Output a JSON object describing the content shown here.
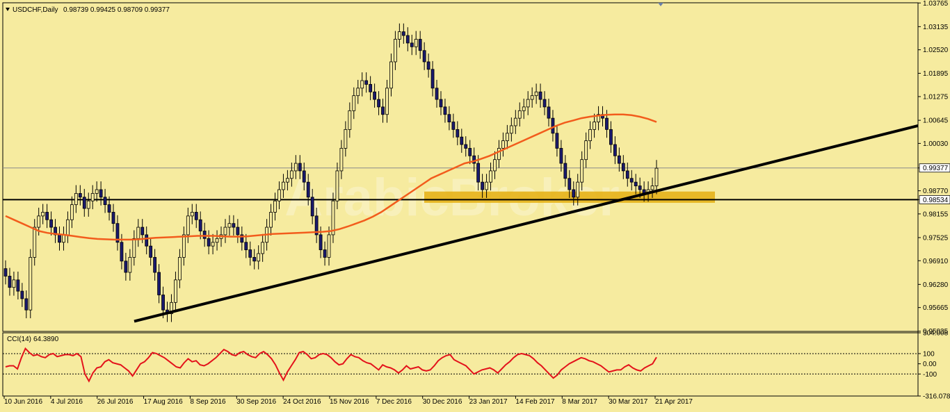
{
  "header": {
    "symbol": "USDCHF,Daily",
    "ohlc": "0.98739 0.99425 0.98709 0.99377"
  },
  "watermark": "ArabicBroker",
  "chart_data": [
    {
      "type": "candlestick",
      "symbol": "USDCHF",
      "timeframe": "Daily",
      "last_ohlc": {
        "open": 0.98739,
        "high": 0.99425,
        "low": 0.98709,
        "close": 0.99377
      },
      "ylim": [
        0.9503,
        1.0377
      ],
      "y_ticks": [
        "1.03765",
        "1.03135",
        "1.02520",
        "1.01895",
        "1.01275",
        "1.00645",
        "1.00030",
        "0.99377",
        "0.98770",
        "0.98534",
        "0.98155",
        "0.97525",
        "0.96910",
        "0.96280",
        "0.95665",
        "0.95035"
      ],
      "current_price_label": "0.99377",
      "horizontal_line_label": "0.98534",
      "horizontal_line": 0.98534,
      "support_zone": [
        0.9845,
        0.9875
      ],
      "trendline": [
        {
          "x": "17 Aug 2016",
          "y": 0.953
        },
        {
          "x": "11 May 2017",
          "y": 1.005
        }
      ],
      "x_ticks": [
        "10 Jun 2016",
        "4 Jul 2016",
        "26 Jul 2016",
        "17 Aug 2016",
        "8 Sep 2016",
        "30 Sep 2016",
        "24 Oct 2016",
        "15 Nov 2016",
        "7 Dec 2016",
        "30 Dec 2016",
        "23 Jan 2017",
        "14 Feb 2017",
        "8 Mar 2017",
        "30 Mar 2017",
        "21 Apr 2017"
      ],
      "close_series": [
        0.965,
        0.962,
        0.964,
        0.961,
        0.959,
        0.956,
        0.97,
        0.978,
        0.981,
        0.982,
        0.98,
        0.978,
        0.976,
        0.974,
        0.976,
        0.98,
        0.984,
        0.987,
        0.986,
        0.983,
        0.985,
        0.987,
        0.988,
        0.986,
        0.984,
        0.982,
        0.979,
        0.974,
        0.969,
        0.966,
        0.97,
        0.975,
        0.978,
        0.976,
        0.973,
        0.97,
        0.966,
        0.96,
        0.956,
        0.955,
        0.958,
        0.964,
        0.97,
        0.976,
        0.981,
        0.982,
        0.98,
        0.977,
        0.975,
        0.973,
        0.974,
        0.975,
        0.976,
        0.978,
        0.979,
        0.978,
        0.976,
        0.974,
        0.972,
        0.97,
        0.969,
        0.971,
        0.974,
        0.978,
        0.982,
        0.985,
        0.988,
        0.99,
        0.991,
        0.993,
        0.995,
        0.993,
        0.99,
        0.986,
        0.981,
        0.976,
        0.972,
        0.97,
        0.976,
        0.985,
        0.993,
        0.999,
        1.004,
        1.009,
        1.013,
        1.015,
        1.017,
        1.016,
        1.014,
        1.012,
        1.01,
        1.008,
        1.015,
        1.022,
        1.028,
        1.03,
        1.029,
        1.027,
        1.026,
        1.028,
        1.025,
        1.022,
        1.02,
        1.015,
        1.012,
        1.01,
        1.008,
        1.006,
        1.004,
        1.002,
        1.0,
        0.999,
        0.997,
        0.995,
        0.99,
        0.988,
        0.99,
        0.993,
        0.996,
        0.999,
        1.001,
        1.003,
        1.005,
        1.007,
        1.009,
        1.01,
        1.012,
        1.013,
        1.014,
        1.012,
        1.01,
        1.007,
        1.003,
        0.999,
        0.995,
        0.991,
        0.988,
        0.986,
        0.99,
        0.996,
        1.001,
        1.004,
        1.006,
        1.008,
        1.007,
        1.004,
        1.0,
        0.997,
        0.995,
        0.993,
        0.991,
        0.99,
        0.989,
        0.988,
        0.987,
        0.988,
        0.989,
        0.9937
      ],
      "moving_average": [
        0.981,
        0.98,
        0.979,
        0.978,
        0.977,
        0.9765,
        0.9762,
        0.976,
        0.9757,
        0.9754,
        0.9751,
        0.9749,
        0.9748,
        0.9747,
        0.9747,
        0.9747,
        0.9748,
        0.975,
        0.9752,
        0.9753,
        0.9754,
        0.9755,
        0.9756,
        0.9757,
        0.9757,
        0.9757,
        0.9756,
        0.9755,
        0.9755,
        0.9756,
        0.9758,
        0.976,
        0.9762,
        0.9763,
        0.9764,
        0.9765,
        0.9766,
        0.9767,
        0.9768,
        0.977,
        0.9775,
        0.9782,
        0.979,
        0.9798,
        0.9808,
        0.982,
        0.9835,
        0.985,
        0.9865,
        0.988,
        0.9895,
        0.991,
        0.992,
        0.993,
        0.994,
        0.995,
        0.9955,
        0.9962,
        0.997,
        0.998,
        0.999,
        1.0,
        1.001,
        1.002,
        1.003,
        1.004,
        1.005,
        1.0058,
        1.0064,
        1.007,
        1.0074,
        1.0077,
        1.0079,
        1.008,
        1.008,
        1.0078,
        1.0074,
        1.0068,
        1.006
      ],
      "indicator": {
        "label": "CCI(14)",
        "value": "64.3890",
        "ylim": [
          -316.0788,
          304.008
        ],
        "y_ticks": [
          "304.008",
          "100",
          "0.00",
          "-100",
          "-316.0788"
        ],
        "levels": [
          100,
          -100
        ],
        "series": [
          -30,
          -20,
          -20,
          -50,
          60,
          150,
          110,
          80,
          90,
          70,
          60,
          90,
          100,
          70,
          80,
          90,
          90,
          80,
          100,
          70,
          -100,
          -170,
          -90,
          -40,
          -30,
          20,
          40,
          10,
          0,
          -10,
          -40,
          -70,
          -120,
          -60,
          0,
          20,
          60,
          110,
          100,
          80,
          60,
          30,
          0,
          -30,
          -40,
          10,
          50,
          20,
          30,
          -10,
          -20,
          0,
          30,
          60,
          100,
          140,
          120,
          90,
          80,
          110,
          120,
          90,
          70,
          60,
          100,
          120,
          90,
          50,
          -10,
          -90,
          -160,
          -80,
          -20,
          40,
          110,
          120,
          90,
          50,
          60,
          90,
          100,
          90,
          60,
          20,
          -10,
          0,
          50,
          90,
          70,
          60,
          30,
          10,
          0,
          -30,
          -60,
          -10,
          -30,
          -40,
          -60,
          -90,
          -60,
          -20,
          -50,
          -40,
          -30,
          -60,
          -70,
          -60,
          -20,
          30,
          60,
          80,
          90,
          40,
          20,
          0,
          -20,
          -60,
          -100,
          -80,
          -60,
          -50,
          -40,
          -60,
          -90,
          -50,
          -10,
          20,
          60,
          90,
          100,
          90,
          80,
          50,
          10,
          -20,
          -60,
          -100,
          -140,
          -110,
          -60,
          -30,
          0,
          20,
          40,
          60,
          50,
          30,
          20,
          0,
          -20,
          -50,
          -80,
          -70,
          -60,
          -60,
          -30,
          -10,
          -40,
          -60,
          -70,
          -40,
          -20,
          0,
          64
        ]
      }
    }
  ]
}
